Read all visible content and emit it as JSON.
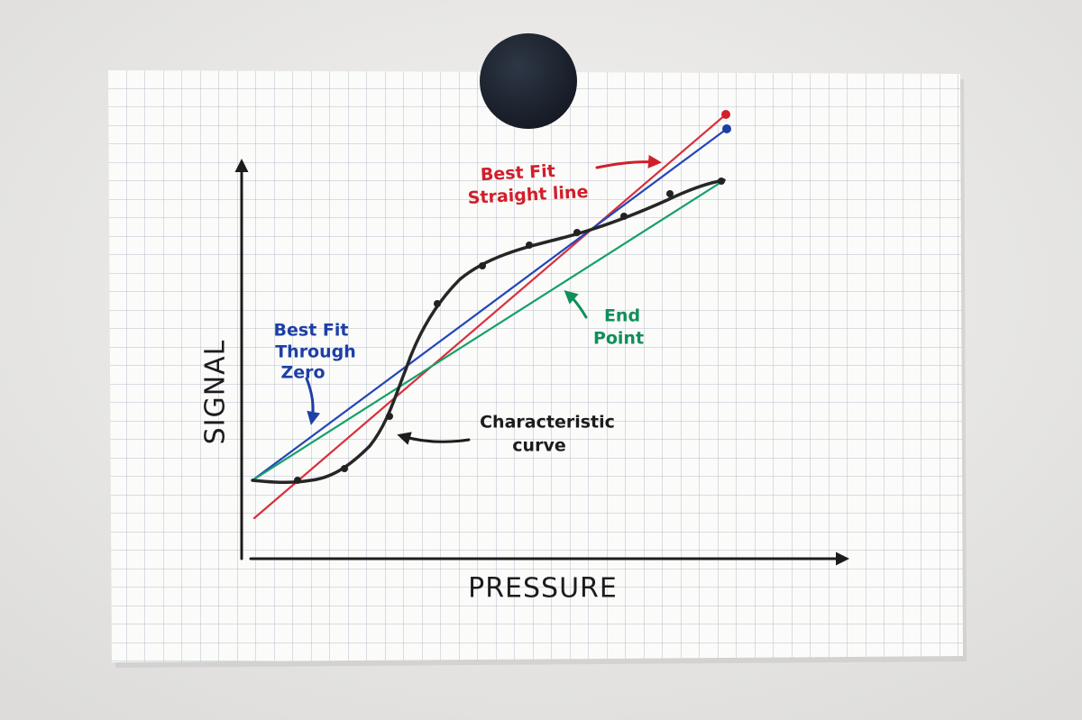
{
  "y_axis_label": "SIGNAL",
  "x_axis_label": "PRESSURE",
  "annotations": {
    "best_fit_straight_line": [
      "Best Fit",
      "Straight line"
    ],
    "best_fit_through_zero": [
      "Best Fit",
      "Through",
      "Zero"
    ],
    "end_point": [
      "End",
      "Point"
    ],
    "characteristic_curve": [
      "Characteristic",
      "curve"
    ]
  }
}
